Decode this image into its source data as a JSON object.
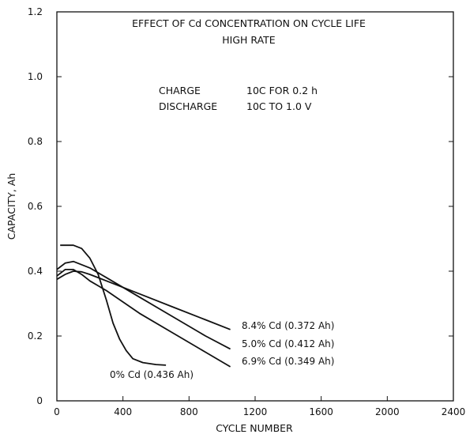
{
  "chart_data": {
    "type": "line",
    "title": "EFFECT OF Cd CONCENTRATION ON CYCLE LIFE",
    "subtitle": "HIGH RATE",
    "xlabel": "CYCLE NUMBER",
    "ylabel": "CAPACITY, Ah",
    "xlim": [
      0,
      2400
    ],
    "ylim": [
      0,
      1.2
    ],
    "x_ticks": [
      "0",
      "400",
      "800",
      "1200",
      "1600",
      "2000",
      "2400"
    ],
    "y_ticks": [
      "0",
      "0.2",
      "0.4",
      "0.6",
      "0.8",
      "1.0",
      "1.2"
    ],
    "grid": false,
    "annotations": {
      "charge_label": "CHARGE",
      "charge_value": "10C FOR 0.2 h",
      "discharge_label": "DISCHARGE",
      "discharge_value": "10C TO 1.0 V"
    },
    "series": [
      {
        "name": "8.4% Cd (0.372 Ah)",
        "x": [
          0,
          50,
          100,
          150,
          200,
          300,
          500,
          700,
          900,
          1050
        ],
        "y": [
          0.375,
          0.39,
          0.4,
          0.398,
          0.39,
          0.37,
          0.33,
          0.29,
          0.25,
          0.22
        ]
      },
      {
        "name": "5.0% Cd (0.412 Ah)",
        "x": [
          0,
          50,
          100,
          150,
          200,
          300,
          500,
          700,
          900,
          1050
        ],
        "y": [
          0.405,
          0.425,
          0.43,
          0.42,
          0.41,
          0.38,
          0.32,
          0.26,
          0.2,
          0.16
        ]
      },
      {
        "name": "6.9% Cd (0.349 Ah)",
        "x": [
          0,
          50,
          100,
          150,
          200,
          300,
          500,
          700,
          900,
          1050
        ],
        "y": [
          0.385,
          0.405,
          0.405,
          0.39,
          0.37,
          0.34,
          0.27,
          0.21,
          0.15,
          0.105
        ]
      },
      {
        "name": "0% Cd (0.436 Ah)",
        "x": [
          20,
          100,
          150,
          200,
          250,
          300,
          340,
          380,
          420,
          460,
          520,
          600,
          660
        ],
        "y": [
          0.48,
          0.48,
          0.47,
          0.44,
          0.39,
          0.31,
          0.24,
          0.19,
          0.155,
          0.13,
          0.118,
          0.112,
          0.11
        ]
      }
    ]
  }
}
